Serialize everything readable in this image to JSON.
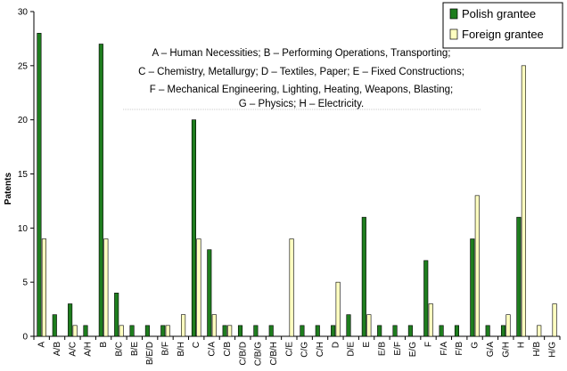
{
  "chart_data": {
    "type": "bar",
    "ylabel": "Patents",
    "xlabel": "",
    "ylim": [
      0,
      30
    ],
    "yticks": [
      0,
      5,
      10,
      15,
      20,
      25,
      30
    ],
    "grid": false,
    "legend_position": "top-right",
    "categories": [
      "A",
      "A/B",
      "A/C",
      "A/H",
      "B",
      "B/C",
      "B/E",
      "B/E/D",
      "B/F",
      "B/H",
      "C",
      "C/A",
      "C/B",
      "C/B/D",
      "C/B/G",
      "C/B/H",
      "C/E",
      "C/G",
      "C/H",
      "D",
      "D/E",
      "E",
      "E/B",
      "E/F",
      "E/G",
      "F",
      "F/A",
      "F/B",
      "G",
      "G/A",
      "G/H",
      "H",
      "H/B",
      "H/G"
    ],
    "series": [
      {
        "name": "Polish grantee",
        "color": "#1e7d1e",
        "values": [
          28,
          2,
          3,
          1,
          27,
          4,
          1,
          1,
          1,
          0,
          20,
          8,
          1,
          1,
          1,
          1,
          0,
          1,
          1,
          1,
          2,
          11,
          1,
          1,
          1,
          7,
          1,
          1,
          9,
          1,
          1,
          11,
          0,
          0
        ]
      },
      {
        "name": "Foreign grantee",
        "color": "#ffffc0",
        "values": [
          9,
          0,
          1,
          0,
          9,
          1,
          0,
          0,
          1,
          2,
          9,
          2,
          1,
          0,
          0,
          0,
          9,
          0,
          0,
          5,
          0,
          2,
          0,
          0,
          0,
          3,
          0,
          0,
          13,
          0,
          2,
          25,
          1,
          3
        ]
      }
    ],
    "annotation_lines": [
      "A – Human Necessities; B – Performing Operations, Transporting;",
      "C – Chemistry, Metallurgy; D – Textiles, Paper; E – Fixed Constructions;",
      "F – Mechanical Engineering, Lighting, Heating, Weapons, Blasting;",
      "G – Physics; H – Electricity."
    ]
  }
}
